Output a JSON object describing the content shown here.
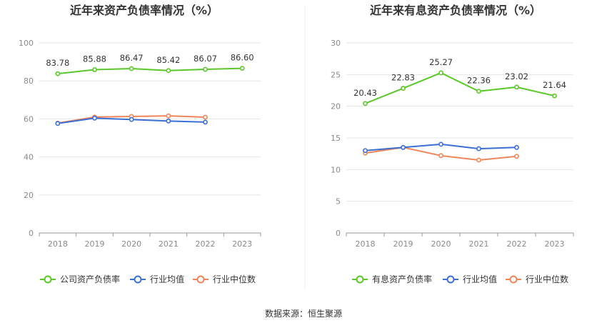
{
  "source": "数据来源：恒生聚源",
  "colors": {
    "company": "#5cc72b",
    "industry_avg": "#3b6fd4",
    "industry_median": "#f0855a",
    "grid": "#e6e6e6",
    "axis": "#999999"
  },
  "chart_data": [
    {
      "type": "line",
      "title": "近年来资产负债率情况（%）",
      "categories": [
        "2018",
        "2019",
        "2020",
        "2021",
        "2022",
        "2023"
      ],
      "ylim": [
        0,
        100
      ],
      "yticks": [
        0,
        20,
        40,
        60,
        80,
        100
      ],
      "grid": true,
      "legend_position": "bottom",
      "series": [
        {
          "name": "公司资产负债率",
          "color_key": "company",
          "values": [
            83.78,
            85.88,
            86.47,
            85.42,
            86.07,
            86.6
          ],
          "labels": [
            "83.78",
            "85.88",
            "86.47",
            "85.42",
            "86.07",
            "86.60"
          ]
        },
        {
          "name": "行业均值",
          "color_key": "industry_avg",
          "values": [
            57.6,
            60.4,
            59.7,
            58.9,
            58.3,
            null
          ]
        },
        {
          "name": "行业中位数",
          "color_key": "industry_median",
          "values": [
            57.8,
            61.0,
            61.3,
            61.6,
            60.9,
            null
          ]
        }
      ]
    },
    {
      "type": "line",
      "title": "近年来有息资产负债率情况（%）",
      "categories": [
        "2018",
        "2019",
        "2020",
        "2021",
        "2022",
        "2023"
      ],
      "ylim": [
        0,
        30
      ],
      "yticks": [
        0,
        5,
        10,
        15,
        20,
        25,
        30
      ],
      "grid": true,
      "legend_position": "bottom",
      "series": [
        {
          "name": "有息资产负债率",
          "color_key": "company",
          "values": [
            20.43,
            22.83,
            25.27,
            22.36,
            23.02,
            21.64
          ],
          "labels": [
            "20.43",
            "22.83",
            "25.27",
            "22.36",
            "23.02",
            "21.64"
          ]
        },
        {
          "name": "行业均值",
          "color_key": "industry_avg",
          "values": [
            13.0,
            13.5,
            14.0,
            13.3,
            13.5,
            null
          ]
        },
        {
          "name": "行业中位数",
          "color_key": "industry_median",
          "values": [
            12.6,
            13.5,
            12.2,
            11.5,
            12.1,
            null
          ]
        }
      ]
    }
  ]
}
